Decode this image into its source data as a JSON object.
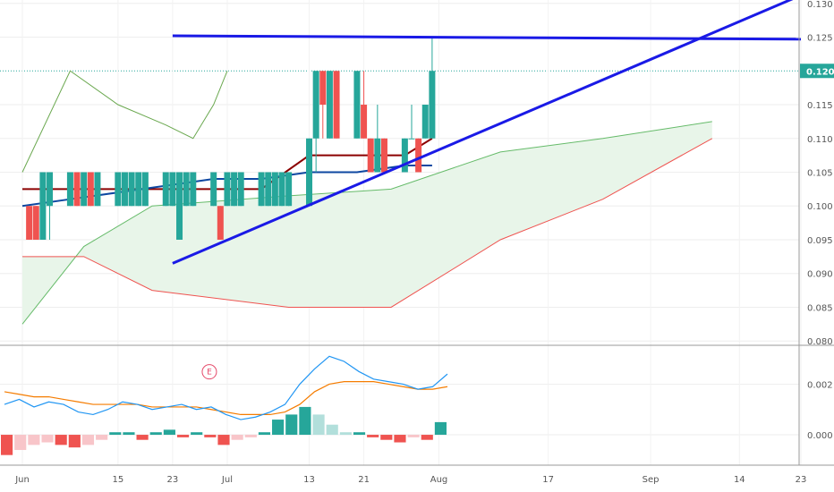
{
  "chart_data": [
    {
      "type": "candlestick",
      "title": "",
      "price_axis": {
        "ticks": [
          "0.130",
          "0.125",
          "0.120",
          "0.115",
          "0.110",
          "0.105",
          "0.100",
          "0.095",
          "0.090",
          "0.085",
          "0.080"
        ],
        "ylim": [
          0.0795,
          0.1305
        ],
        "last_price": "0.120"
      },
      "time_axis": {
        "ticks": [
          "Jun",
          "15",
          "23",
          "Jul",
          "13",
          "21",
          "Aug",
          "17",
          "Sep",
          "14",
          "23"
        ]
      },
      "candles": [
        {
          "date": "Jun 2",
          "open": 0.1,
          "close": 0.095,
          "high": 0.1,
          "low": 0.095
        },
        {
          "date": "Jun 3",
          "open": 0.1,
          "close": 0.095,
          "high": 0.1,
          "low": 0.095
        },
        {
          "date": "Jun 4",
          "open": 0.095,
          "close": 0.105,
          "high": 0.105,
          "low": 0.095
        },
        {
          "date": "Jun 5",
          "open": 0.1,
          "close": 0.105,
          "high": 0.105,
          "low": 0.095
        },
        {
          "date": "Jun 8",
          "open": 0.1,
          "close": 0.105,
          "high": 0.105,
          "low": 0.1
        },
        {
          "date": "Jun 9",
          "open": 0.105,
          "close": 0.1,
          "high": 0.105,
          "low": 0.1
        },
        {
          "date": "Jun 10",
          "open": 0.1,
          "close": 0.105,
          "high": 0.105,
          "low": 0.1
        },
        {
          "date": "Jun 11",
          "open": 0.105,
          "close": 0.1,
          "high": 0.105,
          "low": 0.1
        },
        {
          "date": "Jun 12",
          "open": 0.1,
          "close": 0.105,
          "high": 0.105,
          "low": 0.1
        },
        {
          "date": "Jun 15",
          "open": 0.1,
          "close": 0.105,
          "high": 0.105,
          "low": 0.1
        },
        {
          "date": "Jun 16",
          "open": 0.1,
          "close": 0.105,
          "high": 0.105,
          "low": 0.1
        },
        {
          "date": "Jun 17",
          "open": 0.1,
          "close": 0.105,
          "high": 0.105,
          "low": 0.1
        },
        {
          "date": "Jun 18",
          "open": 0.1,
          "close": 0.105,
          "high": 0.105,
          "low": 0.1
        },
        {
          "date": "Jun 19",
          "open": 0.1,
          "close": 0.105,
          "high": 0.105,
          "low": 0.1
        },
        {
          "date": "Jun 22",
          "open": 0.1,
          "close": 0.105,
          "high": 0.105,
          "low": 0.1
        },
        {
          "date": "Jun 23",
          "open": 0.1,
          "close": 0.105,
          "high": 0.105,
          "low": 0.1
        },
        {
          "date": "Jun 24",
          "open": 0.095,
          "close": 0.105,
          "high": 0.105,
          "low": 0.095
        },
        {
          "date": "Jun 25",
          "open": 0.1,
          "close": 0.105,
          "high": 0.105,
          "low": 0.1
        },
        {
          "date": "Jun 26",
          "open": 0.1,
          "close": 0.105,
          "high": 0.105,
          "low": 0.1
        },
        {
          "date": "Jun 29",
          "open": 0.1,
          "close": 0.105,
          "high": 0.105,
          "low": 0.1
        },
        {
          "date": "Jun 30",
          "open": 0.1,
          "close": 0.095,
          "high": 0.1,
          "low": 0.095
        },
        {
          "date": "Jul 1",
          "open": 0.1,
          "close": 0.105,
          "high": 0.105,
          "low": 0.1
        },
        {
          "date": "Jul 2",
          "open": 0.1,
          "close": 0.105,
          "high": 0.105,
          "low": 0.1
        },
        {
          "date": "Jul 3",
          "open": 0.1,
          "close": 0.105,
          "high": 0.105,
          "low": 0.1
        },
        {
          "date": "Jul 6",
          "open": 0.1,
          "close": 0.105,
          "high": 0.105,
          "low": 0.1
        },
        {
          "date": "Jul 7",
          "open": 0.1,
          "close": 0.105,
          "high": 0.105,
          "low": 0.1
        },
        {
          "date": "Jul 8",
          "open": 0.1,
          "close": 0.105,
          "high": 0.105,
          "low": 0.1
        },
        {
          "date": "Jul 9",
          "open": 0.1,
          "close": 0.105,
          "high": 0.105,
          "low": 0.1
        },
        {
          "date": "Jul 10",
          "open": 0.1,
          "close": 0.105,
          "high": 0.105,
          "low": 0.1
        },
        {
          "date": "Jul 13",
          "open": 0.1,
          "close": 0.11,
          "high": 0.11,
          "low": 0.1
        },
        {
          "date": "Jul 14",
          "open": 0.11,
          "close": 0.12,
          "high": 0.12,
          "low": 0.105
        },
        {
          "date": "Jul 15",
          "open": 0.12,
          "close": 0.115,
          "high": 0.12,
          "low": 0.11
        },
        {
          "date": "Jul 16",
          "open": 0.11,
          "close": 0.12,
          "high": 0.12,
          "low": 0.11
        },
        {
          "date": "Jul 17",
          "open": 0.12,
          "close": 0.11,
          "high": 0.12,
          "low": 0.11
        },
        {
          "date": "Jul 20",
          "open": 0.11,
          "close": 0.12,
          "high": 0.12,
          "low": 0.11
        },
        {
          "date": "Jul 21",
          "open": 0.115,
          "close": 0.11,
          "high": 0.12,
          "low": 0.11
        },
        {
          "date": "Jul 22",
          "open": 0.11,
          "close": 0.105,
          "high": 0.11,
          "low": 0.105
        },
        {
          "date": "Jul 23",
          "open": 0.105,
          "close": 0.11,
          "high": 0.115,
          "low": 0.105
        },
        {
          "date": "Jul 24",
          "open": 0.11,
          "close": 0.105,
          "high": 0.11,
          "low": 0.105
        },
        {
          "date": "Jul 27",
          "open": 0.105,
          "close": 0.11,
          "high": 0.11,
          "low": 0.105
        },
        {
          "date": "Jul 28",
          "open": 0.11,
          "close": 0.11,
          "high": 0.115,
          "low": 0.11
        },
        {
          "date": "Jul 29",
          "open": 0.11,
          "close": 0.105,
          "high": 0.11,
          "low": 0.105
        },
        {
          "date": "Jul 30",
          "open": 0.11,
          "close": 0.115,
          "high": 0.115,
          "low": 0.11
        },
        {
          "date": "Jul 31",
          "open": 0.11,
          "close": 0.12,
          "high": 0.125,
          "low": 0.11
        }
      ],
      "indicators": {
        "conversion_line_blue": [
          0.1,
          0.101,
          0.102,
          0.103,
          0.104,
          0.104,
          0.105,
          0.105,
          0.106,
          0.106
        ],
        "base_line_red": [
          0.1025,
          0.1025,
          0.1025,
          0.1025,
          0.1025,
          0.1025,
          0.1075,
          0.1075,
          0.1075,
          0.11
        ],
        "lagging_span_green": [
          0.105,
          0.12,
          0.115,
          0.112,
          0.11,
          0.115,
          0.12
        ],
        "leading_span_a": [
          0.0825,
          0.094,
          0.1,
          0.1015,
          0.1025,
          0.108,
          0.11,
          0.1125
        ],
        "leading_span_b": [
          0.0925,
          0.0925,
          0.0875,
          0.085,
          0.085,
          0.095,
          0.101,
          0.11
        ]
      },
      "trendlines": [
        {
          "name": "resistance",
          "from": {
            "date": "Jun 23",
            "price": 0.1252
          },
          "to": {
            "date": "Sep 23",
            "price": 0.1247
          }
        },
        {
          "name": "support",
          "from": {
            "date": "Jun 23",
            "price": 0.0915
          },
          "to": {
            "date": "Sep 23",
            "price": 0.1312
          }
        }
      ],
      "marker": {
        "label": "E",
        "date": "Jul 1",
        "price": 0.0818
      }
    },
    {
      "type": "macd",
      "ticks": [
        "0.002",
        "0.000"
      ],
      "ylim": [
        -0.0012,
        0.0035
      ],
      "macd_line": [
        0.0012,
        0.0014,
        0.0011,
        0.0013,
        0.0012,
        0.0009,
        0.0008,
        0.001,
        0.0013,
        0.0012,
        0.001,
        0.0011,
        0.0012,
        0.001,
        0.0011,
        0.0008,
        0.0006,
        0.0007,
        0.0009,
        0.0012,
        0.002,
        0.0026,
        0.0031,
        0.0029,
        0.0025,
        0.0022,
        0.0021,
        0.002,
        0.0018,
        0.0019,
        0.0024
      ],
      "signal_line": [
        0.0017,
        0.0016,
        0.0015,
        0.0015,
        0.0014,
        0.0013,
        0.0012,
        0.0012,
        0.0012,
        0.0012,
        0.0011,
        0.0011,
        0.0011,
        0.0011,
        0.001,
        0.0009,
        0.0008,
        0.0008,
        0.0008,
        0.0009,
        0.0012,
        0.0017,
        0.002,
        0.0021,
        0.0021,
        0.0021,
        0.002,
        0.0019,
        0.0018,
        0.0018,
        0.0019
      ],
      "histogram": [
        -0.0008,
        -0.0006,
        -0.0004,
        -0.0003,
        -0.0004,
        -0.0005,
        -0.0004,
        -0.0002,
        0.0001,
        0.0001,
        -0.0002,
        0.0001,
        0.0002,
        -0.0001,
        0.0001,
        -0.0001,
        -0.0004,
        -0.0002,
        -0.0001,
        0.0001,
        0.0006,
        0.0008,
        0.0011,
        0.0008,
        0.0004,
        0.0001,
        0.0001,
        -0.0001,
        -0.0002,
        -0.0003,
        -0.0001,
        -0.0002,
        0.0005
      ]
    }
  ]
}
